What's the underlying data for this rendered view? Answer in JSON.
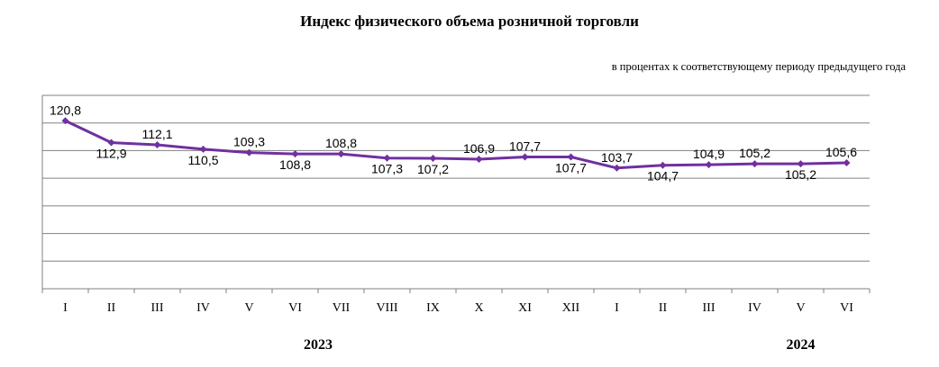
{
  "chart_data": {
    "type": "line",
    "title": "Индекс физического объема розничной торговли",
    "subtitle": "в процентах к соответствующему периоду предыдущего года",
    "categories": [
      "I",
      "II",
      "III",
      "IV",
      "V",
      "VI",
      "VII",
      "VIII",
      "IX",
      "X",
      "XI",
      "XII",
      "I",
      "II",
      "III",
      "IV",
      "V",
      "VI"
    ],
    "year_labels": [
      {
        "label": "2023",
        "from_index": 0,
        "to_index": 11
      },
      {
        "label": "2024",
        "from_index": 12,
        "to_index": 17
      }
    ],
    "series": [
      {
        "values": [
          120.8,
          112.9,
          112.1,
          110.5,
          109.3,
          108.8,
          108.8,
          107.3,
          107.2,
          106.9,
          107.7,
          107.7,
          103.7,
          104.7,
          104.9,
          105.2,
          105.2,
          105.6
        ],
        "color": "#7030a0"
      }
    ],
    "data_labels": [
      "120,8",
      "112,9",
      "112,1",
      "110,5",
      "109,3",
      "108,8",
      "108,8",
      "107,3",
      "107,2",
      "106,9",
      "107,7",
      "107,7",
      "103,7",
      "104,7",
      "104,9",
      "105,2",
      "105,2",
      "105,6"
    ],
    "label_positions": [
      "above",
      "below",
      "above",
      "below",
      "above",
      "below",
      "above",
      "below",
      "below",
      "above",
      "above",
      "below",
      "above",
      "below",
      "above",
      "above",
      "below",
      "above"
    ],
    "ylim": [
      60,
      130
    ],
    "grid": true,
    "gridline_color": "#808080"
  }
}
